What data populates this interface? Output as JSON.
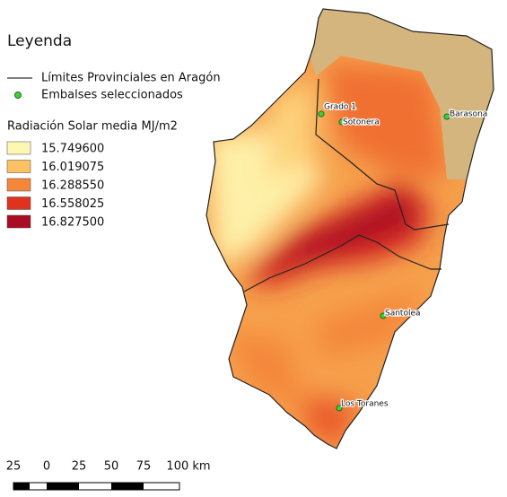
{
  "legend": {
    "title": "Leyenda",
    "items": [
      {
        "label": "Límites Provinciales en Aragón"
      },
      {
        "label": "Embalses seleccionados"
      }
    ],
    "raster": {
      "title": "Radiación Solar media MJ/m2",
      "classes": [
        {
          "label": "15.749600",
          "color": "#fef6b3"
        },
        {
          "label": "16.019075",
          "color": "#fdc162"
        },
        {
          "label": "16.288550",
          "color": "#f4873a"
        },
        {
          "label": "16.558025",
          "color": "#e0331f"
        },
        {
          "label": "16.827500",
          "color": "#a80d24"
        }
      ]
    }
  },
  "map": {
    "reservoirs": [
      {
        "label": "Grado 1"
      },
      {
        "label": "Sotonera"
      },
      {
        "label": "Barasona"
      },
      {
        "label": "Santolea"
      },
      {
        "label": "Los Toranes"
      }
    ]
  },
  "scale_bar": {
    "labels": [
      "25",
      "0",
      "25",
      "50",
      "75",
      "100 km"
    ]
  }
}
